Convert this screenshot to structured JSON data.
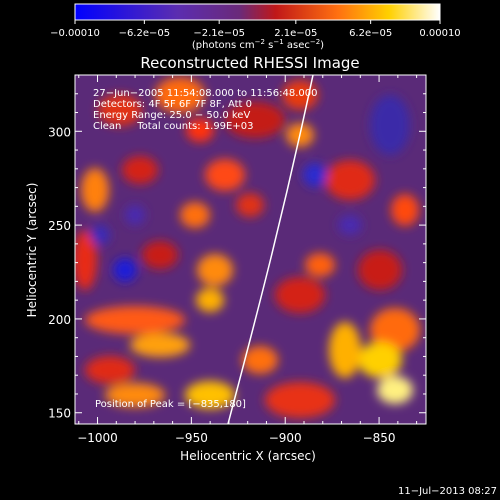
{
  "chart_data": {
    "type": "heatmap",
    "title": "Reconstructed RHESSI Image",
    "xlabel": "Heliocentric X (arcsec)",
    "ylabel": "Heliocentric Y (arcsec)",
    "xlim": [
      -1012,
      -825
    ],
    "ylim": [
      144,
      330
    ],
    "x_ticks": [
      -1000,
      -950,
      -900,
      -850
    ],
    "x_tick_labels": [
      "−1000",
      "−950",
      "−900",
      "−850"
    ],
    "y_ticks": [
      150,
      200,
      250,
      300
    ],
    "y_tick_labels": [
      "150",
      "200",
      "250",
      "300"
    ],
    "colorbar": {
      "ticks": [
        -0.0001,
        -6.2e-05,
        -2.1e-05,
        2.1e-05,
        6.2e-05,
        0.0001
      ],
      "tick_labels": [
        "−0.00010",
        "−6.2e−05",
        "−2.1e−05",
        "2.1e−05",
        "6.2e−05",
        "0.00010"
      ],
      "units_text": "(photons cm",
      "units_exp1": "−2",
      "units_mid": " s",
      "units_exp2": "−1",
      "units_end": " asec",
      "units_exp3": "−2",
      "units_close": ")",
      "colors": [
        "#0000ff",
        "#7a3fa8",
        "#5a2a80",
        "#c0201a",
        "#ff7a10",
        "#ffd800",
        "#ffffff"
      ]
    },
    "info_lines": [
      "27−Jun−2005 11:54:08.000 to 11:56:48.000",
      "Detectors: 4F 5F 6F 7F 8F, Att 0",
      "Energy Range: 25.0 − 50.0 keV",
      "Clean     Total counts: 1.99E+03"
    ],
    "peak_label": "Position of Peak = [−835,180]",
    "timestamp": "11−Jul−2013 08:27"
  }
}
